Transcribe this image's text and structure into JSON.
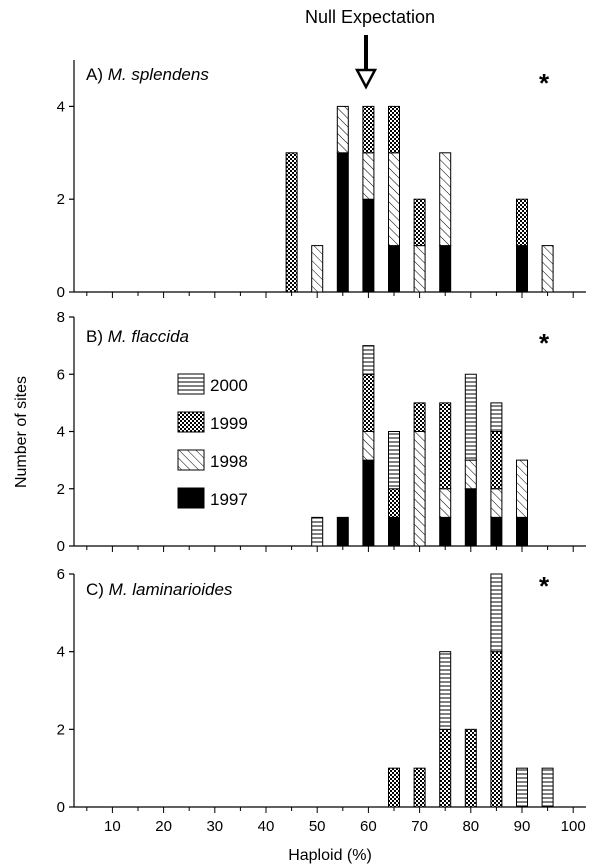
{
  "annotation": {
    "null_expectation": "Null Expectation"
  },
  "chart_data": {
    "type": "bar",
    "stacked": true,
    "xlabel": "Haploid (%)",
    "ylabel": "Number of sites",
    "xlim": [
      2.5,
      102.5
    ],
    "xticks": [
      10,
      20,
      30,
      40,
      50,
      60,
      70,
      80,
      90,
      100
    ],
    "bin_centers": [
      45,
      50,
      55,
      60,
      65,
      70,
      75,
      80,
      85,
      90,
      95
    ],
    "null_expectation_x": 60,
    "legend": {
      "placement": "inside panel B, left",
      "entries": [
        {
          "name": "2000",
          "pattern": "horizontal-lines"
        },
        {
          "name": "1999",
          "pattern": "checkered"
        },
        {
          "name": "1998",
          "pattern": "diagonal-lines"
        },
        {
          "name": "1997",
          "pattern": "solid-black"
        }
      ]
    },
    "panels": [
      {
        "label_prefix": "A) ",
        "species": "M. splendens",
        "marker": "*",
        "ylim": [
          0,
          5
        ],
        "yticks": [
          0,
          2,
          4
        ],
        "series": [
          {
            "name": "1997",
            "values": [
              0,
              0,
              3,
              2,
              1,
              0,
              1,
              0,
              0,
              1,
              0
            ]
          },
          {
            "name": "1998",
            "values": [
              0,
              1,
              1,
              1,
              2,
              1,
              2,
              0,
              0,
              0,
              1
            ]
          },
          {
            "name": "1999",
            "values": [
              3,
              0,
              0,
              1,
              1,
              1,
              0,
              0,
              0,
              1,
              0
            ]
          },
          {
            "name": "2000",
            "values": [
              0,
              0,
              0,
              0,
              0,
              0,
              0,
              0,
              0,
              0,
              0
            ]
          }
        ]
      },
      {
        "label_prefix": "B) ",
        "species": "M. flaccida",
        "marker": "*",
        "ylim": [
          0,
          8
        ],
        "yticks": [
          0,
          2,
          4,
          6,
          8
        ],
        "series": [
          {
            "name": "1997",
            "values": [
              0,
              0,
              1,
              3,
              1,
              0,
              1,
              2,
              1,
              1,
              0
            ]
          },
          {
            "name": "1998",
            "values": [
              0,
              0,
              0,
              1,
              0,
              4,
              1,
              1,
              1,
              2,
              0
            ]
          },
          {
            "name": "1999",
            "values": [
              0,
              0,
              0,
              2,
              1,
              1,
              3,
              0,
              2,
              0,
              0
            ]
          },
          {
            "name": "2000",
            "values": [
              0,
              1,
              0,
              1,
              2,
              0,
              0,
              3,
              1,
              0,
              0
            ]
          }
        ]
      },
      {
        "label_prefix": "C) ",
        "species": "M. laminarioides",
        "marker": "*",
        "ylim": [
          0,
          6
        ],
        "yticks": [
          0,
          2,
          4,
          6
        ],
        "series": [
          {
            "name": "1997",
            "values": [
              0,
              0,
              0,
              0,
              0,
              0,
              0,
              0,
              0,
              0,
              0
            ]
          },
          {
            "name": "1998",
            "values": [
              0,
              0,
              0,
              0,
              0,
              0,
              0,
              0,
              0,
              0,
              0
            ]
          },
          {
            "name": "1999",
            "values": [
              0,
              0,
              0,
              0,
              1,
              1,
              2,
              2,
              4,
              0,
              0
            ]
          },
          {
            "name": "2000",
            "values": [
              0,
              0,
              0,
              0,
              0,
              0,
              2,
              0,
              2,
              1,
              1
            ]
          }
        ]
      }
    ]
  }
}
